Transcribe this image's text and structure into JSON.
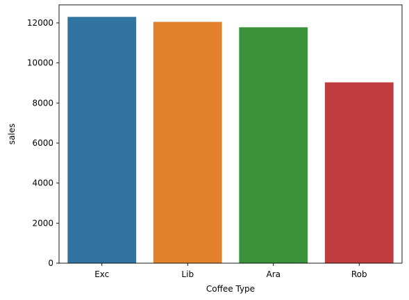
{
  "chart_data": {
    "type": "bar",
    "categories": [
      "Exc",
      "Lib",
      "Ara",
      "Rob"
    ],
    "values": [
      12300,
      12050,
      11780,
      9030
    ],
    "colors": [
      "#3274a1",
      "#e1812c",
      "#3a923a",
      "#c03d3e"
    ],
    "xlabel": "Coffee Type",
    "ylabel": "sales",
    "ylim": [
      0,
      12900
    ],
    "yticks": [
      0,
      2000,
      4000,
      6000,
      8000,
      10000,
      12000
    ],
    "grid": false,
    "legend": "none"
  }
}
